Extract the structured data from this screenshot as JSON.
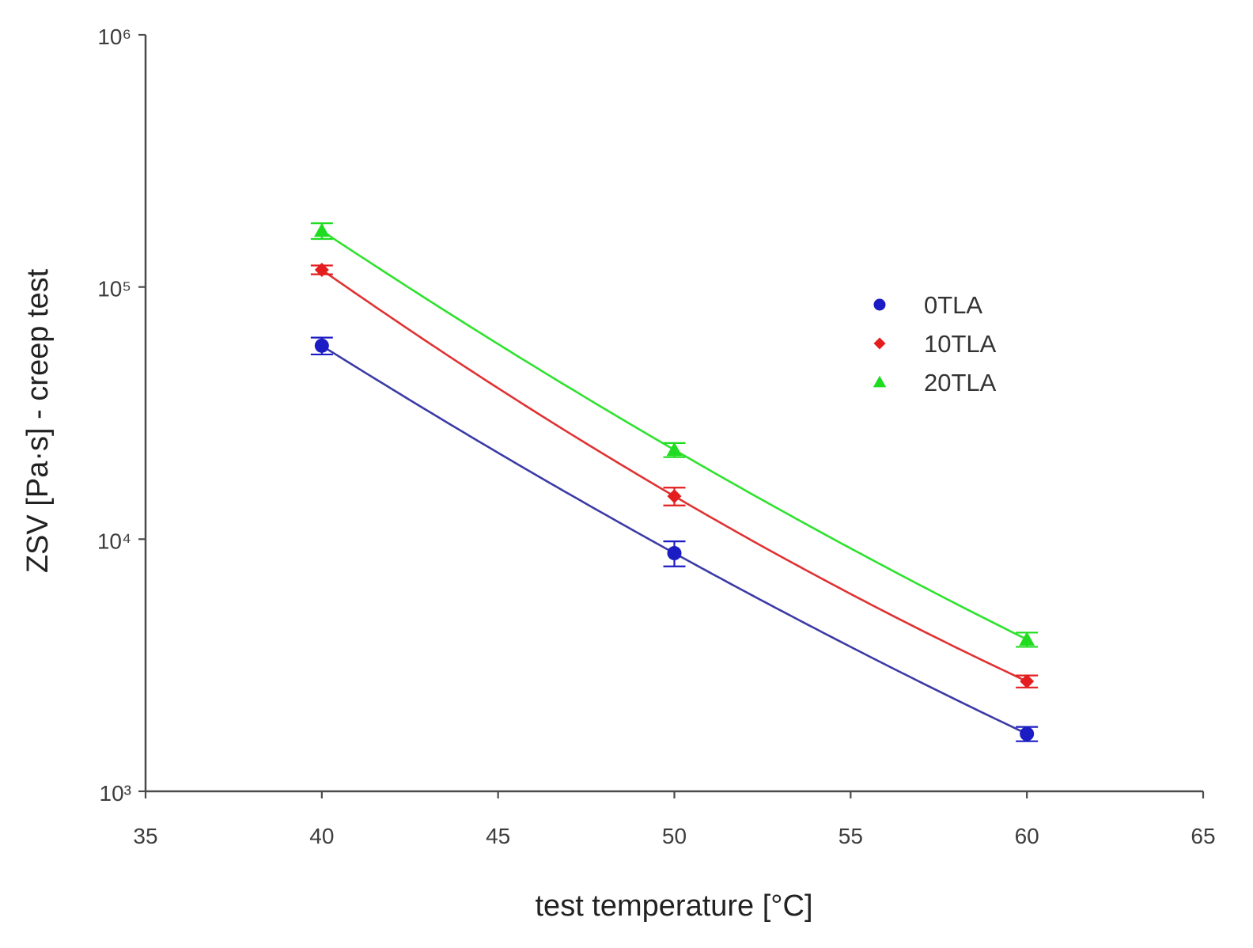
{
  "chart_data": {
    "type": "line",
    "title": "",
    "xlabel": "test temperature [°C]",
    "ylabel": "ZSV [Pa·s] - creep test",
    "xlim": [
      35,
      65
    ],
    "ylim": [
      1000,
      1000000
    ],
    "yscale": "log",
    "x_ticks": [
      35,
      40,
      45,
      50,
      55,
      60,
      65
    ],
    "x_tick_labels": [
      "35",
      "40",
      "45",
      "50",
      "55",
      "60",
      "65"
    ],
    "y_ticks": [
      1000,
      10000,
      100000,
      1000000
    ],
    "y_tick_labels": [
      "10³",
      "10⁴",
      "10⁵",
      "10⁶"
    ],
    "grid": false,
    "legend_position": "center-right",
    "series": [
      {
        "name": "0TLA",
        "marker": "circle",
        "color": "#1c1cc4",
        "line_color": "#3b3ba6",
        "x": [
          40,
          50,
          60
        ],
        "y": [
          58500,
          8800,
          1690
        ],
        "error": [
          4500,
          1000,
          110
        ]
      },
      {
        "name": "10TLA",
        "marker": "diamond",
        "color": "#e41e1e",
        "line_color": "#e03232",
        "x": [
          40,
          50,
          60
        ],
        "y": [
          117000,
          14800,
          2730
        ],
        "error": [
          4700,
          1200,
          150
        ]
      },
      {
        "name": "20TLA",
        "marker": "triangle",
        "color": "#20dc20",
        "line_color": "#2ee22e",
        "x": [
          40,
          50,
          60
        ],
        "y": [
          167000,
          22600,
          4000
        ],
        "error": [
          12000,
          1450,
          260
        ]
      }
    ]
  }
}
